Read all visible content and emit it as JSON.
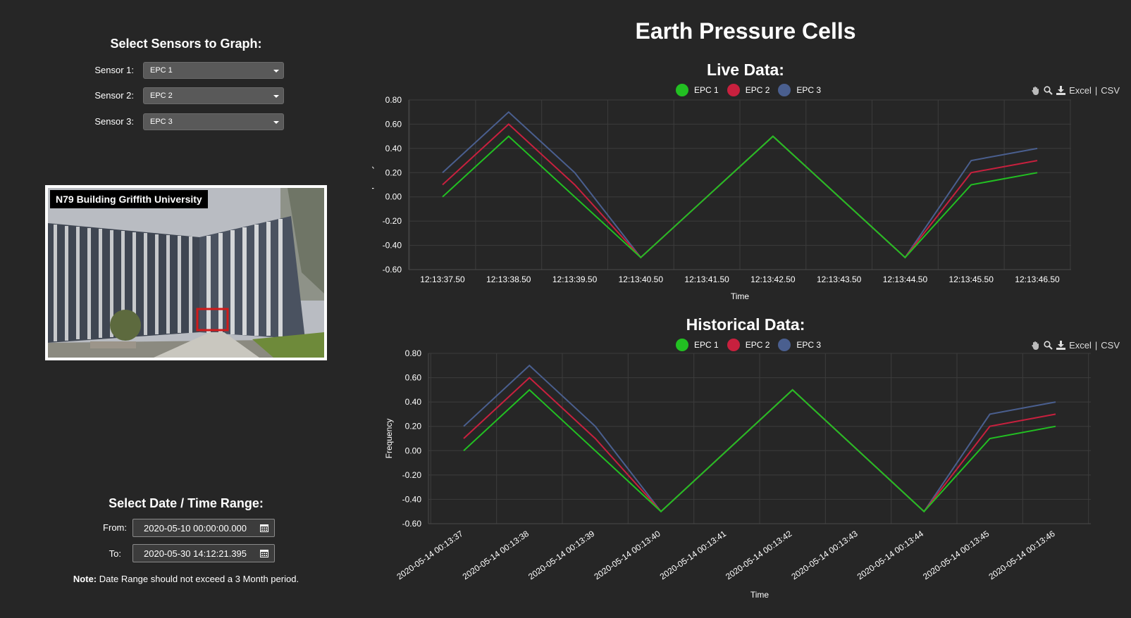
{
  "page_title": "Earth Pressure Cells",
  "sensors": {
    "heading": "Select Sensors to Graph:",
    "rows": [
      {
        "label": "Sensor 1:",
        "value": "EPC 1"
      },
      {
        "label": "Sensor 2:",
        "value": "EPC 2"
      },
      {
        "label": "Sensor 3:",
        "value": "EPC 3"
      }
    ]
  },
  "photo": {
    "caption": "N79 Building Griffith University"
  },
  "date_range": {
    "heading": "Select Date / Time Range:",
    "from_label": "From:",
    "from_value": "2020-05-10 00:00:00.000",
    "to_label": "To:",
    "to_value": "2020-05-30 14:12:21.395",
    "note_bold": "Note:",
    "note_text": " Date Range should not exceed a 3 Month period."
  },
  "toolbar": {
    "excel": "Excel",
    "sep": "|",
    "csv": "CSV",
    "icons": [
      "hand-icon",
      "zoom-icon",
      "download-icon"
    ]
  },
  "colors": {
    "EPC 1": "#22c022",
    "EPC 2": "#c8203e",
    "EPC 3": "#4a5f8f"
  },
  "chart_data": [
    {
      "type": "line",
      "title": "Live Data:",
      "xlabel": "Time",
      "ylabel": "Frequency",
      "ylim": [
        -0.6,
        0.8
      ],
      "yticks": [
        "0.80",
        "0.60",
        "0.40",
        "0.20",
        "0.00",
        "-0.20",
        "-0.40",
        "-0.60"
      ],
      "categories": [
        "12:13:37.50",
        "12:13:38.50",
        "12:13:39.50",
        "12:13:40.50",
        "12:13:41.50",
        "12:13:42.50",
        "12:13:43.50",
        "12:13:44.50",
        "12:13:45.50",
        "12:13:46.50"
      ],
      "grid": true,
      "legend": "top-center",
      "series": [
        {
          "name": "EPC 1",
          "values": [
            0.0,
            0.5,
            null,
            -0.5,
            null,
            0.5,
            null,
            -0.5,
            0.1,
            0.2
          ]
        },
        {
          "name": "EPC 2",
          "values": [
            0.1,
            0.6,
            0.1,
            -0.5,
            null,
            0.5,
            null,
            -0.5,
            0.2,
            0.3
          ]
        },
        {
          "name": "EPC 3",
          "values": [
            0.2,
            0.7,
            0.2,
            -0.5,
            null,
            0.5,
            null,
            -0.5,
            0.3,
            0.4
          ]
        }
      ]
    },
    {
      "type": "line",
      "title": "Historical Data:",
      "xlabel": "Time",
      "ylabel": "Frequency",
      "ylim": [
        -0.6,
        0.8
      ],
      "yticks": [
        "0.80",
        "0.60",
        "0.40",
        "0.20",
        "0.00",
        "-0.20",
        "-0.40",
        "-0.60"
      ],
      "categories": [
        "2020-05-14 00:13:37",
        "2020-05-14 00:13:38",
        "2020-05-14 00:13:39",
        "2020-05-14 00:13:40",
        "2020-05-14 00:13:41",
        "2020-05-14 00:13:42",
        "2020-05-14 00:13:43",
        "2020-05-14 00:13:44",
        "2020-05-14 00:13:45",
        "2020-05-14 00:13:46"
      ],
      "grid": true,
      "legend": "top-center",
      "series": [
        {
          "name": "EPC 1",
          "values": [
            0.0,
            0.5,
            null,
            -0.5,
            null,
            0.5,
            null,
            -0.5,
            0.1,
            0.2
          ]
        },
        {
          "name": "EPC 2",
          "values": [
            0.1,
            0.6,
            0.1,
            -0.5,
            null,
            0.5,
            null,
            -0.5,
            0.2,
            0.3
          ]
        },
        {
          "name": "EPC 3",
          "values": [
            0.2,
            0.7,
            0.2,
            -0.5,
            null,
            0.5,
            null,
            -0.5,
            0.3,
            0.4
          ]
        }
      ]
    }
  ]
}
